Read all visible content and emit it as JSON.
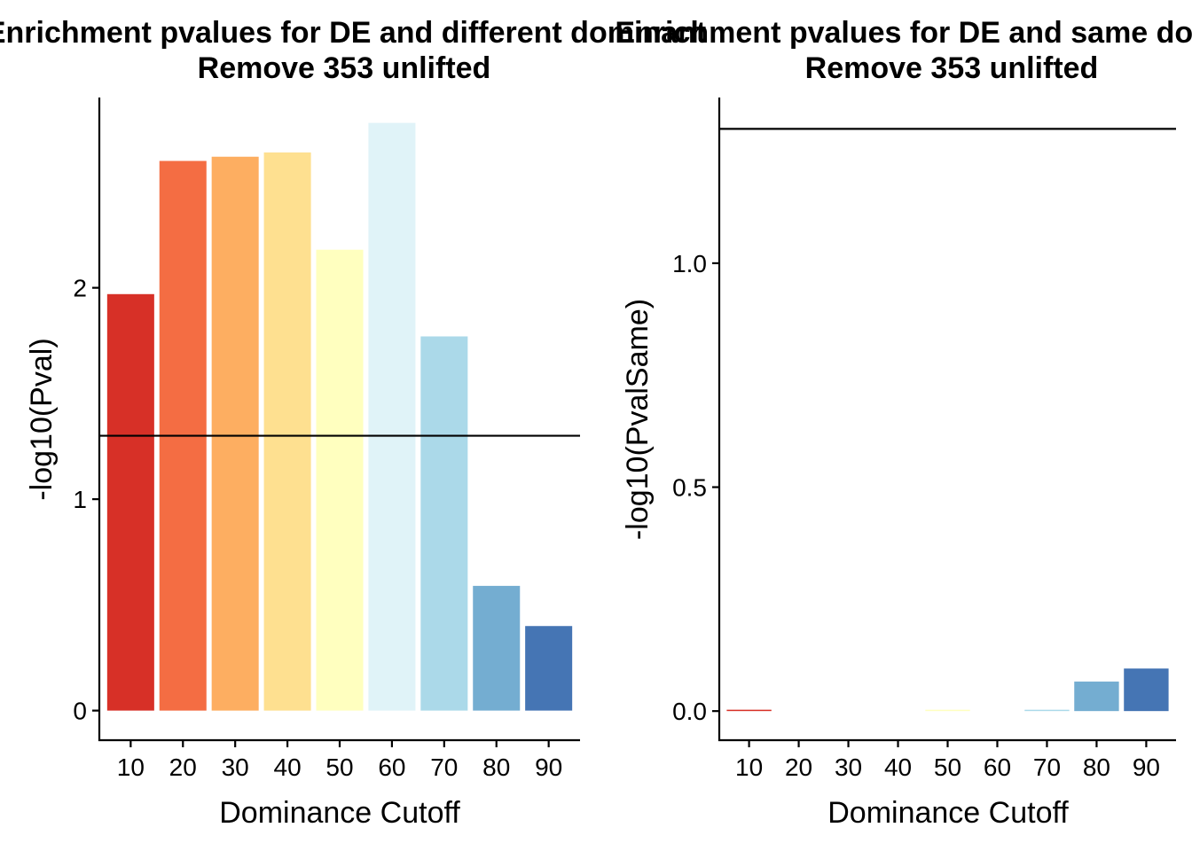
{
  "chart_data": [
    {
      "type": "bar",
      "title": "Enrichment pvalues for DE and different dominant",
      "subtitle": "Remove 353 unlifted",
      "xlabel": "Dominance Cutoff",
      "ylabel": "-log10(Pval)",
      "categories": [
        "10",
        "20",
        "30",
        "40",
        "50",
        "60",
        "70",
        "80",
        "90"
      ],
      "values": [
        1.97,
        2.6,
        2.62,
        2.64,
        2.18,
        2.78,
        1.77,
        0.59,
        0.4
      ],
      "ylim": [
        -0.14,
        2.9
      ],
      "yticks": [
        0,
        1,
        2
      ],
      "ytick_labels": [
        "0",
        "1",
        "2"
      ],
      "reference_line": 1.3,
      "grid": false,
      "legend": "none",
      "colors": [
        "#d73027",
        "#f46d43",
        "#fdae61",
        "#fee090",
        "#ffffbf",
        "#e0f3f8",
        "#abd9e9",
        "#74add1",
        "#4575b4"
      ]
    },
    {
      "type": "bar",
      "title": "Enrichment pvalues for DE and same dominant",
      "subtitle": "Remove 353 unlifted",
      "xlabel": "Dominance Cutoff",
      "ylabel": "-log10(PvalSame)",
      "categories": [
        "10",
        "20",
        "30",
        "40",
        "50",
        "60",
        "70",
        "80",
        "90"
      ],
      "values": [
        0.003,
        0,
        0,
        0,
        0.002,
        0,
        0.002,
        0.066,
        0.095
      ],
      "ylim": [
        -0.065,
        1.37
      ],
      "yticks": [
        0,
        0.5,
        1
      ],
      "ytick_labels": [
        "0.0",
        "0.5",
        "1.0"
      ],
      "reference_line": 1.3,
      "grid": false,
      "legend": "none",
      "colors": [
        "#d73027",
        "#f46d43",
        "#fdae61",
        "#fee090",
        "#ffffbf",
        "#e0f3f8",
        "#abd9e9",
        "#74add1",
        "#4575b4"
      ]
    }
  ]
}
